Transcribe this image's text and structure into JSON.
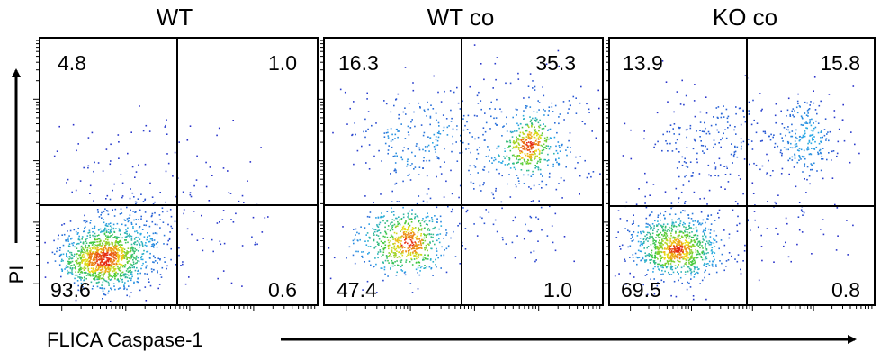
{
  "figure": {
    "y_axis_label": "PI",
    "x_axis_label": "FLICA Caspase-1"
  },
  "chart_data": [
    {
      "type": "scatter",
      "title": "WT",
      "xlabel": "FLICA Caspase-1",
      "ylabel": "PI",
      "quadrants": {
        "upper_left": "4.8",
        "upper_right": "1.0",
        "lower_left": "93.6",
        "lower_right": "0.6"
      },
      "populations": [
        {
          "center": [
            0.22,
            0.17
          ],
          "spread": [
            0.07,
            0.05
          ],
          "share": 0.6
        },
        {
          "center": [
            0.3,
            0.24
          ],
          "spread": [
            0.1,
            0.08
          ],
          "share": 0.32
        },
        {
          "center": [
            0.35,
            0.55
          ],
          "spread": [
            0.22,
            0.08
          ],
          "share": 0.05
        },
        {
          "center": [
            0.65,
            0.3
          ],
          "spread": [
            0.1,
            0.1
          ],
          "share": 0.03
        }
      ],
      "grid": false
    },
    {
      "type": "scatter",
      "title": "WT co",
      "xlabel": "FLICA Caspase-1",
      "ylabel": "PI",
      "quadrants": {
        "upper_left": "16.3",
        "upper_right": "35.3",
        "lower_left": "47.4",
        "lower_right": "1.0"
      },
      "populations": [
        {
          "center": [
            0.28,
            0.24
          ],
          "spread": [
            0.08,
            0.06
          ],
          "share": 0.42
        },
        {
          "center": [
            0.35,
            0.62
          ],
          "spread": [
            0.15,
            0.1
          ],
          "share": 0.18
        },
        {
          "center": [
            0.74,
            0.6
          ],
          "spread": [
            0.04,
            0.05
          ],
          "share": 0.18
        },
        {
          "center": [
            0.72,
            0.6
          ],
          "spread": [
            0.12,
            0.14
          ],
          "share": 0.2
        },
        {
          "center": [
            0.7,
            0.28
          ],
          "spread": [
            0.1,
            0.06
          ],
          "share": 0.02
        }
      ],
      "grid": false
    },
    {
      "type": "scatter",
      "title": "KO co",
      "xlabel": "FLICA Caspase-1",
      "ylabel": "PI",
      "quadrants": {
        "upper_left": "13.9",
        "upper_right": "15.8",
        "lower_left": "69.5",
        "lower_right": "0.8"
      },
      "populations": [
        {
          "center": [
            0.24,
            0.21
          ],
          "spread": [
            0.07,
            0.05
          ],
          "share": 0.45
        },
        {
          "center": [
            0.28,
            0.25
          ],
          "spread": [
            0.14,
            0.1
          ],
          "share": 0.22
        },
        {
          "center": [
            0.4,
            0.63
          ],
          "spread": [
            0.15,
            0.09
          ],
          "share": 0.15
        },
        {
          "center": [
            0.75,
            0.62
          ],
          "spread": [
            0.05,
            0.07
          ],
          "share": 0.1
        },
        {
          "center": [
            0.73,
            0.6
          ],
          "spread": [
            0.1,
            0.12
          ],
          "share": 0.06
        },
        {
          "center": [
            0.7,
            0.3
          ],
          "spread": [
            0.1,
            0.06
          ],
          "share": 0.02
        }
      ],
      "grid": false
    }
  ]
}
